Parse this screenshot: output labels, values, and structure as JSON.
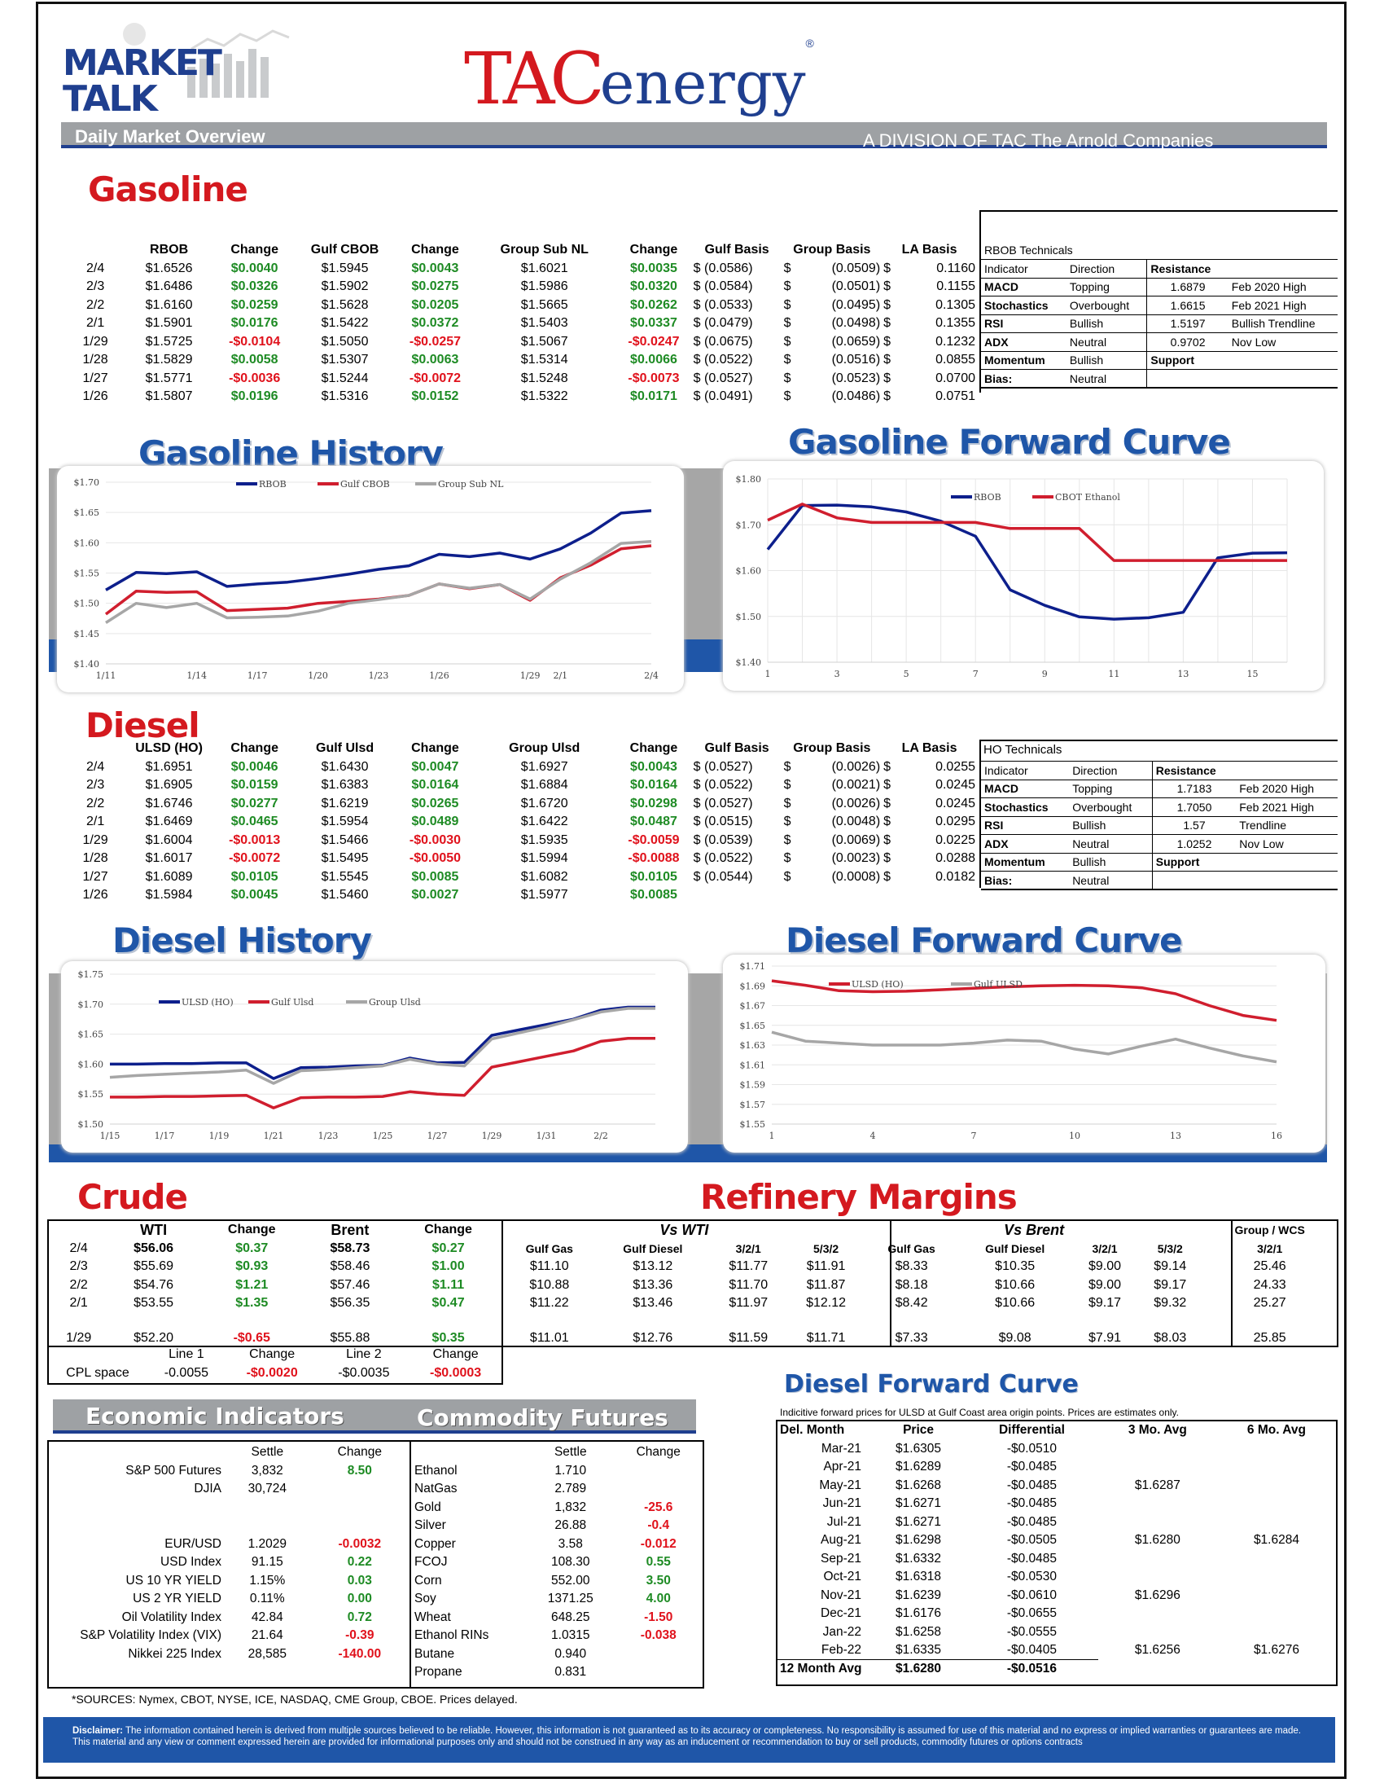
{
  "header": {
    "market": "MARKET",
    "talk": "TALK",
    "subtitle": "Daily Market Overview",
    "logo_tac": "TAC",
    "logo_energy": "energy",
    "logo_reg": "®",
    "division": "A DIVISION OF TAC The Arnold Companies"
  },
  "gas": {
    "title": "Gasoline",
    "headers": [
      "",
      "RBOB",
      "Change",
      "Gulf CBOB",
      "Change",
      "Group Sub NL",
      "Change",
      "Gulf Basis",
      "Group Basis",
      "LA Basis"
    ],
    "rows": [
      [
        "2/4",
        "$1.6526",
        "$0.0040",
        "$1.5945",
        "$0.0043",
        "$1.6021",
        "$0.0035",
        "$ (0.0586)",
        "$",
        "(0.0509)",
        "$",
        "0.1160"
      ],
      [
        "2/3",
        "$1.6486",
        "$0.0326",
        "$1.5902",
        "$0.0275",
        "$1.5986",
        "$0.0320",
        "$ (0.0584)",
        "$",
        "(0.0501)",
        "$",
        "0.1155"
      ],
      [
        "2/2",
        "$1.6160",
        "$0.0259",
        "$1.5628",
        "$0.0205",
        "$1.5665",
        "$0.0262",
        "$ (0.0533)",
        "$",
        "(0.0495)",
        "$",
        "0.1305"
      ],
      [
        "2/1",
        "$1.5901",
        "$0.0176",
        "$1.5422",
        "$0.0372",
        "$1.5403",
        "$0.0337",
        "$ (0.0479)",
        "$",
        "(0.0498)",
        "$",
        "0.1355"
      ],
      [
        "1/29",
        "$1.5725",
        "-$0.0104",
        "$1.5050",
        "-$0.0257",
        "$1.5067",
        "-$0.0247",
        "$ (0.0675)",
        "$",
        "(0.0659)",
        "$",
        "0.1232"
      ],
      [
        "1/28",
        "$1.5829",
        "$0.0058",
        "$1.5307",
        "$0.0063",
        "$1.5314",
        "$0.0066",
        "$ (0.0522)",
        "$",
        "(0.0516)",
        "$",
        "0.0855"
      ],
      [
        "1/27",
        "$1.5771",
        "-$0.0036",
        "$1.5244",
        "-$0.0072",
        "$1.5248",
        "-$0.0073",
        "$ (0.0527)",
        "$",
        "(0.0523)",
        "$",
        "0.0700"
      ],
      [
        "1/26",
        "$1.5807",
        "$0.0196",
        "$1.5316",
        "$0.0152",
        "$1.5322",
        "$0.0171",
        "$ (0.0491)",
        "$",
        "(0.0486)",
        "$",
        "0.0751"
      ]
    ],
    "tech_title": "RBOB Technicals",
    "tech": [
      [
        "Indicator",
        "Direction",
        "Resistance",
        ""
      ],
      [
        "MACD",
        "Topping",
        "1.6879",
        "Feb 2020 High"
      ],
      [
        "Stochastics",
        "Overbought",
        "1.6615",
        "Feb 2021 High"
      ],
      [
        "RSI",
        "Bullish",
        "1.5197",
        "Bullish Trendline"
      ],
      [
        "ADX",
        "Neutral",
        "0.9702",
        "Nov Low"
      ],
      [
        "Momentum",
        "Bullish",
        "Support",
        ""
      ],
      [
        "Bias:",
        "Neutral",
        "",
        ""
      ]
    ]
  },
  "gas_hist": {
    "title": "Gasoline History"
  },
  "gas_fwd": {
    "title": "Gasoline Forward Curve"
  },
  "diesel": {
    "title": "Diesel",
    "headers": [
      "",
      "ULSD (HO)",
      "Change",
      "Gulf Ulsd",
      "Change",
      "Group Ulsd",
      "Change",
      "Gulf Basis",
      "Group Basis",
      "LA Basis"
    ],
    "rows": [
      [
        "2/4",
        "$1.6951",
        "$0.0046",
        "$1.6430",
        "$0.0047",
        "$1.6927",
        "$0.0043",
        "$ (0.0527)",
        "$",
        "(0.0026)",
        "$",
        "0.0255"
      ],
      [
        "2/3",
        "$1.6905",
        "$0.0159",
        "$1.6383",
        "$0.0164",
        "$1.6884",
        "$0.0164",
        "$ (0.0522)",
        "$",
        "(0.0021)",
        "$",
        "0.0245"
      ],
      [
        "2/2",
        "$1.6746",
        "$0.0277",
        "$1.6219",
        "$0.0265",
        "$1.6720",
        "$0.0298",
        "$ (0.0527)",
        "$",
        "(0.0026)",
        "$",
        "0.0245"
      ],
      [
        "2/1",
        "$1.6469",
        "$0.0465",
        "$1.5954",
        "$0.0489",
        "$1.6422",
        "$0.0487",
        "$ (0.0515)",
        "$",
        "(0.0048)",
        "$",
        "0.0295"
      ],
      [
        "1/29",
        "$1.6004",
        "-$0.0013",
        "$1.5466",
        "-$0.0030",
        "$1.5935",
        "-$0.0059",
        "$ (0.0539)",
        "$",
        "(0.0069)",
        "$",
        "0.0225"
      ],
      [
        "1/28",
        "$1.6017",
        "-$0.0072",
        "$1.5495",
        "-$0.0050",
        "$1.5994",
        "-$0.0088",
        "$ (0.0522)",
        "$",
        "(0.0023)",
        "$",
        "0.0288"
      ],
      [
        "1/27",
        "$1.6089",
        "$0.0105",
        "$1.5545",
        "$0.0085",
        "$1.6082",
        "$0.0105",
        "$ (0.0544)",
        "$",
        "(0.0008)",
        "$",
        "0.0182"
      ],
      [
        "1/26",
        "$1.5984",
        "$0.0045",
        "$1.5460",
        "$0.0027",
        "$1.5977",
        "$0.0085",
        "",
        "",
        "",
        "",
        ""
      ]
    ],
    "tech_title": "HO Technicals",
    "tech": [
      [
        "Indicator",
        "Direction",
        "Resistance",
        ""
      ],
      [
        "MACD",
        "Topping",
        "1.7183",
        "Feb 2020 High"
      ],
      [
        "Stochastics",
        "Overbought",
        "1.7050",
        "Feb 2021 High"
      ],
      [
        "RSI",
        "Bullish",
        "1.57",
        "Trendline"
      ],
      [
        "ADX",
        "Neutral",
        "1.0252",
        "Nov Low"
      ],
      [
        "Momentum",
        "Bullish",
        "Support",
        ""
      ],
      [
        "Bias:",
        "Neutral",
        "",
        ""
      ]
    ]
  },
  "diesel_hist": {
    "title": "Diesel History"
  },
  "diesel_fwd": {
    "title": "Diesel Forward Curve"
  },
  "crude": {
    "title": "Crude",
    "headers": [
      "",
      "WTI",
      "Change",
      "Brent",
      "Change"
    ],
    "rows": [
      [
        "2/4",
        "$56.06",
        "$0.37",
        "$58.73",
        "$0.27"
      ],
      [
        "2/3",
        "$55.69",
        "$0.93",
        "$58.46",
        "$1.00"
      ],
      [
        "2/2",
        "$54.76",
        "$1.21",
        "$57.46",
        "$1.11"
      ],
      [
        "2/1",
        "$53.55",
        "$1.35",
        "$56.35",
        "$0.47"
      ],
      [
        "1/29",
        "$52.20",
        "-$0.65",
        "$55.88",
        "$0.35"
      ]
    ],
    "cpl_headers": [
      "Line 1",
      "Change",
      "Line 2",
      "Change"
    ],
    "cpl": [
      "CPL space",
      "-0.0055",
      "-$0.0020",
      "-$0.0035",
      "-$0.0003"
    ]
  },
  "margins": {
    "title": "Refinery Margins",
    "vs_wti": "Vs WTI",
    "vs_brent": "Vs Brent",
    "group": "Group / WCS",
    "headers": [
      "Gulf Gas",
      "Gulf Diesel",
      "3/2/1",
      "5/3/2",
      "Gulf Gas",
      "Gulf Diesel",
      "3/2/1",
      "5/3/2",
      "3/2/1"
    ],
    "rows": [
      [
        "",
        "",
        "",
        "",
        "",
        "",
        "",
        "",
        ""
      ],
      [
        "$11.10",
        "$13.12",
        "$11.77",
        "$11.91",
        "$8.33",
        "$10.35",
        "$9.00",
        "$9.14",
        "25.46"
      ],
      [
        "$10.88",
        "$13.36",
        "$11.70",
        "$11.87",
        "$8.18",
        "$10.66",
        "$9.00",
        "$9.17",
        "24.33"
      ],
      [
        "$11.22",
        "$13.46",
        "$11.97",
        "$12.12",
        "$8.42",
        "$10.66",
        "$9.17",
        "$9.32",
        "25.27"
      ],
      [
        "$11.01",
        "$12.76",
        "$11.59",
        "$11.71",
        "$7.33",
        "$9.08",
        "$7.91",
        "$8.03",
        "25.85"
      ]
    ]
  },
  "econ": {
    "title": "Economic Indicators",
    "headers": [
      "",
      "Settle",
      "Change"
    ],
    "rows": [
      [
        "S&P 500 Futures",
        "3,832",
        "8.50"
      ],
      [
        "DJIA",
        "30,724",
        ""
      ],
      [
        "",
        "",
        ""
      ],
      [
        "",
        "",
        ""
      ],
      [
        "EUR/USD",
        "1.2029",
        "-0.0032"
      ],
      [
        "USD Index",
        "91.15",
        "0.22"
      ],
      [
        "US 10 YR YIELD",
        "1.15%",
        "0.03"
      ],
      [
        "US 2 YR YIELD",
        "0.11%",
        "0.00"
      ],
      [
        "Oil Volatility Index",
        "42.84",
        "0.72"
      ],
      [
        "S&P Volatility Index (VIX)",
        "21.64",
        "-0.39"
      ],
      [
        "Nikkei 225 Index",
        "28,585",
        "-140.00"
      ],
      [
        "",
        "",
        ""
      ]
    ]
  },
  "comm": {
    "title": "Commodity Futures",
    "headers": [
      "",
      "Settle",
      "Change"
    ],
    "rows": [
      [
        "Ethanol",
        "1.710",
        ""
      ],
      [
        "NatGas",
        "2.789",
        ""
      ],
      [
        "Gold",
        "1,832",
        "-25.6"
      ],
      [
        "Silver",
        "26.88",
        "-0.4"
      ],
      [
        "Copper",
        "3.58",
        "-0.012"
      ],
      [
        "FCOJ",
        "108.30",
        "0.55"
      ],
      [
        "Corn",
        "552.00",
        "3.50"
      ],
      [
        "Soy",
        "1371.25",
        "4.00"
      ],
      [
        "Wheat",
        "648.25",
        "-1.50"
      ],
      [
        "Ethanol RINs",
        "1.0315",
        "-0.038"
      ],
      [
        "Butane",
        "0.940",
        ""
      ],
      [
        "Propane",
        "0.831",
        ""
      ]
    ]
  },
  "dfc": {
    "title": "Diesel Forward Curve",
    "note": "Indicitive forward prices for ULSD at Gulf Coast area origin points.  Prices are estimates only.",
    "headers": [
      "Del. Month",
      "Price",
      "Differential",
      "3 Mo. Avg",
      "6 Mo. Avg"
    ],
    "rows": [
      [
        "Mar-21",
        "$1.6305",
        "-$0.0510",
        "",
        ""
      ],
      [
        "Apr-21",
        "$1.6289",
        "-$0.0485",
        "",
        ""
      ],
      [
        "May-21",
        "$1.6268",
        "-$0.0485",
        "$1.6287",
        ""
      ],
      [
        "Jun-21",
        "$1.6271",
        "-$0.0485",
        "",
        ""
      ],
      [
        "Jul-21",
        "$1.6271",
        "-$0.0485",
        "",
        ""
      ],
      [
        "Aug-21",
        "$1.6298",
        "-$0.0505",
        "$1.6280",
        "$1.6284"
      ],
      [
        "Sep-21",
        "$1.6332",
        "-$0.0485",
        "",
        ""
      ],
      [
        "Oct-21",
        "$1.6318",
        "-$0.0530",
        "",
        ""
      ],
      [
        "Nov-21",
        "$1.6239",
        "-$0.0610",
        "$1.6296",
        ""
      ],
      [
        "Dec-21",
        "$1.6176",
        "-$0.0655",
        "",
        ""
      ],
      [
        "Jan-22",
        "$1.6258",
        "-$0.0555",
        "",
        ""
      ],
      [
        "Feb-22",
        "$1.6335",
        "-$0.0405",
        "$1.6256",
        "$1.6276"
      ]
    ],
    "avg": [
      "12 Month Avg",
      "$1.6280",
      "-$0.0516"
    ]
  },
  "sources": "*SOURCES: Nymex, CBOT, NYSE, ICE, NASDAQ, CME Group, CBOE.   Prices delayed.",
  "disclaimer_label": "Disclaimer:",
  "disclaimer": "The information contained herein is derived from multiple sources believed to be reliable.  However, this information is not  guaranteed as to its accuracy or completeness. No responsibility is assumed for use of this material and no express or implied warranties or guarantees are made. This material and any view or comment expressed herein are provided for informational purposes only and should not  be construed in any way as an inducement or recommendation to buy or sell products, commodity futures or options contracts",
  "colors": {
    "navy": "#0d1f8c",
    "red": "#d01e2e",
    "gray": "#a6a6a6",
    "blue": "#1f56a8"
  },
  "chart_data": [
    {
      "id": "gas_hist",
      "type": "line",
      "ylim": [
        1.4,
        1.7
      ],
      "yticks": [
        "$1.40",
        "$1.45",
        "$1.50",
        "$1.55",
        "$1.60",
        "$1.65",
        "$1.70"
      ],
      "x": [
        "1/11",
        "1/12",
        "1/13",
        "1/14",
        "1/15",
        "1/18",
        "1/19",
        "1/20",
        "1/21",
        "1/22",
        "1/25",
        "1/26",
        "1/27",
        "1/28",
        "1/29",
        "2/1",
        "2/2",
        "2/3",
        "2/4"
      ],
      "xticks": [
        "1/11",
        "1/14",
        "1/17",
        "1/20",
        "1/23",
        "1/26",
        "1/29",
        "2/1",
        "2/4"
      ],
      "series": [
        {
          "name": "RBOB",
          "color": "#0d1f8c",
          "values": [
            1.522,
            1.551,
            1.549,
            1.552,
            1.528,
            1.532,
            1.535,
            1.541,
            1.548,
            1.556,
            1.562,
            1.581,
            1.577,
            1.583,
            1.573,
            1.59,
            1.616,
            1.649,
            1.653
          ]
        },
        {
          "name": "Gulf CBOB",
          "color": "#d01e2e",
          "values": [
            1.482,
            1.52,
            1.518,
            1.519,
            1.488,
            1.49,
            1.492,
            1.5,
            1.503,
            1.507,
            1.513,
            1.532,
            1.524,
            1.531,
            1.505,
            1.542,
            1.563,
            1.59,
            1.595
          ]
        },
        {
          "name": "Group Sub NL",
          "color": "#a6a6a6",
          "values": [
            1.468,
            1.5,
            1.493,
            1.5,
            1.476,
            1.477,
            1.479,
            1.487,
            1.5,
            1.506,
            1.513,
            1.532,
            1.525,
            1.531,
            1.507,
            1.54,
            1.567,
            1.599,
            1.602
          ]
        }
      ]
    },
    {
      "id": "gas_fwd",
      "type": "line",
      "ylim": [
        1.4,
        1.8
      ],
      "yticks": [
        "$1.40",
        "$1.50",
        "$1.60",
        "$1.70",
        "$1.80"
      ],
      "x": [
        1,
        2,
        3,
        4,
        5,
        6,
        7,
        8,
        9,
        10,
        11,
        12,
        13,
        14,
        15,
        16
      ],
      "xticks": [
        "1",
        "3",
        "5",
        "7",
        "9",
        "11",
        "13",
        "15"
      ],
      "series": [
        {
          "name": "RBOB",
          "color": "#0d1f8c",
          "values": [
            1.646,
            1.742,
            1.743,
            1.739,
            1.728,
            1.708,
            1.675,
            1.558,
            1.524,
            1.499,
            1.494,
            1.497,
            1.509,
            1.628,
            1.638,
            1.639
          ]
        },
        {
          "name": "CBOT Ethanol",
          "color": "#d01e2e",
          "values": [
            1.71,
            1.745,
            1.715,
            1.705,
            1.705,
            1.705,
            1.705,
            1.692,
            1.692,
            1.692,
            1.622,
            1.622,
            1.622,
            1.622,
            1.622,
            1.622
          ]
        }
      ]
    },
    {
      "id": "diesel_hist",
      "type": "line",
      "ylim": [
        1.5,
        1.75
      ],
      "yticks": [
        "$1.50",
        "$1.55",
        "$1.60",
        "$1.65",
        "$1.70",
        "$1.75"
      ],
      "x": [
        "1/15",
        "1/16",
        "1/17",
        "1/18",
        "1/19",
        "1/20",
        "1/21",
        "1/22",
        "1/23",
        "1/24",
        "1/25",
        "1/26",
        "1/27",
        "1/28",
        "1/29",
        "1/30",
        "1/31",
        "2/1",
        "2/2",
        "2/3",
        "2/4"
      ],
      "xticks": [
        "1/15",
        "1/17",
        "1/19",
        "1/21",
        "1/23",
        "1/25",
        "1/27",
        "1/29",
        "1/31",
        "2/2"
      ],
      "series": [
        {
          "name": "ULSD (HO)",
          "color": "#0d1f8c",
          "values": [
            1.6,
            1.6,
            1.601,
            1.601,
            1.602,
            1.602,
            1.576,
            1.594,
            1.595,
            1.597,
            1.598,
            1.61,
            1.602,
            1.603,
            1.648,
            1.657,
            1.666,
            1.675,
            1.69,
            1.695,
            1.695
          ]
        },
        {
          "name": "Gulf Ulsd",
          "color": "#d01e2e",
          "values": [
            1.545,
            1.545,
            1.546,
            1.546,
            1.547,
            1.548,
            1.527,
            1.544,
            1.545,
            1.545,
            1.546,
            1.554,
            1.55,
            1.548,
            1.595,
            1.604,
            1.613,
            1.622,
            1.638,
            1.643,
            1.643
          ]
        },
        {
          "name": "Group Ulsd",
          "color": "#a6a6a6",
          "values": [
            1.578,
            1.581,
            1.583,
            1.585,
            1.587,
            1.59,
            1.568,
            1.589,
            1.591,
            1.594,
            1.597,
            1.608,
            1.6,
            1.597,
            1.642,
            1.652,
            1.662,
            1.674,
            1.687,
            1.693,
            1.693
          ]
        }
      ]
    },
    {
      "id": "diesel_fwd",
      "type": "line",
      "ylim": [
        1.55,
        1.71
      ],
      "yticks": [
        "$1.55",
        "$1.57",
        "$1.59",
        "$1.61",
        "$1.63",
        "$1.65",
        "$1.67",
        "$1.69",
        "$1.71"
      ],
      "x": [
        1,
        2,
        3,
        4,
        5,
        6,
        7,
        8,
        9,
        10,
        11,
        12,
        13,
        14,
        15,
        16
      ],
      "xticks": [
        "1",
        "4",
        "7",
        "10",
        "13",
        "16"
      ],
      "series": [
        {
          "name": "ULSD (HO)",
          "color": "#d01e2e",
          "values": [
            1.6951,
            1.6905,
            1.685,
            1.684,
            1.6845,
            1.686,
            1.6875,
            1.689,
            1.69,
            1.6905,
            1.69,
            1.688,
            1.682,
            1.67,
            1.66,
            1.655
          ]
        },
        {
          "name": "Gulf ULSD",
          "color": "#a6a6a6",
          "values": [
            1.643,
            1.634,
            1.632,
            1.63,
            1.63,
            1.63,
            1.632,
            1.635,
            1.634,
            1.626,
            1.621,
            1.629,
            1.636,
            1.627,
            1.619,
            1.613
          ]
        }
      ]
    }
  ]
}
